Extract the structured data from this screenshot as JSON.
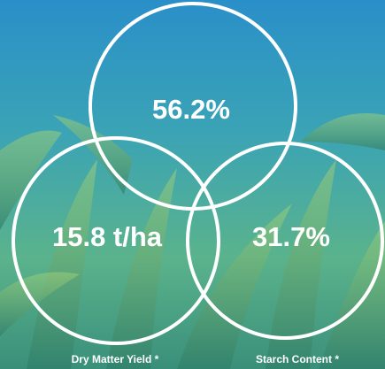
{
  "circles": [
    {
      "value": "56.2%"
    },
    {
      "value": "15.8 t/ha",
      "label": "Dry Matter Yield *"
    },
    {
      "value": "31.7%",
      "label": "Starch Content *"
    }
  ]
}
